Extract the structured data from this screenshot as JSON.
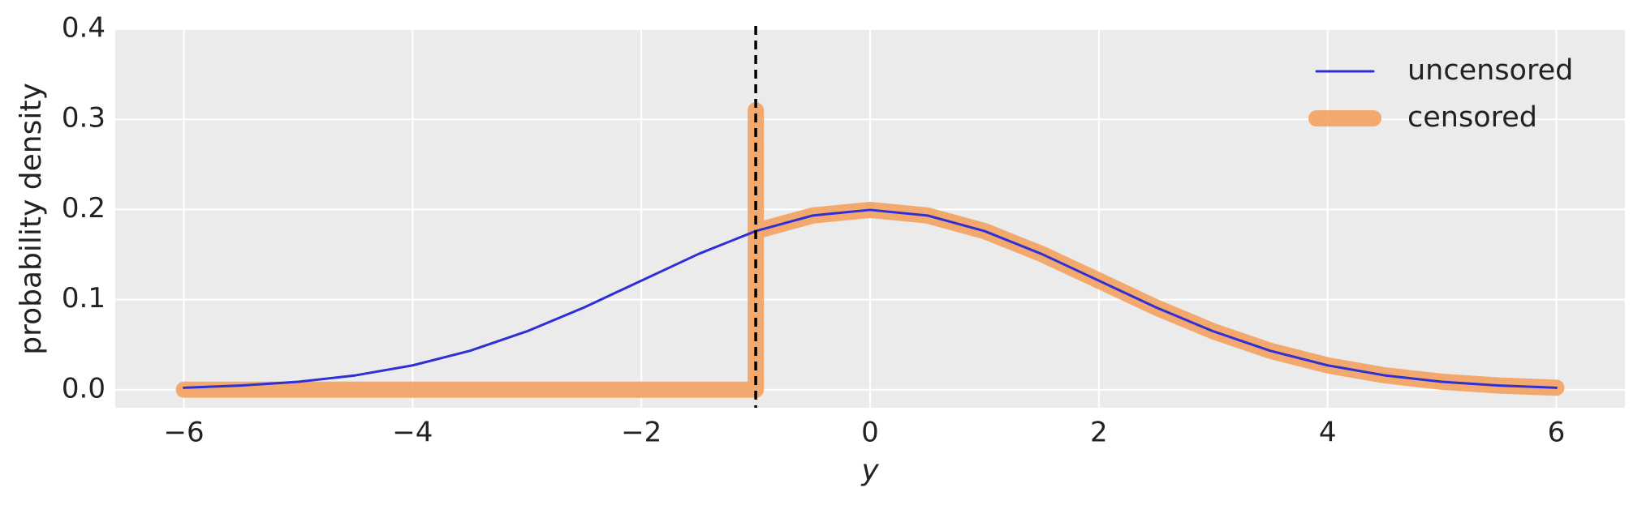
{
  "chart_data": {
    "type": "line",
    "xlabel": "y",
    "ylabel": "probability density",
    "xlim": [
      -6.6,
      6.6
    ],
    "ylim": [
      -0.02,
      0.4
    ],
    "xticks": [
      {
        "value": -6,
        "label": "−6"
      },
      {
        "value": -4,
        "label": "−4"
      },
      {
        "value": -2,
        "label": "−2"
      },
      0,
      2,
      4,
      6
    ],
    "yticks": [
      {
        "value": 0,
        "label": "0.0"
      },
      0.1,
      0.2,
      0.3,
      0.4
    ],
    "grid": true,
    "legend": "upper right",
    "threshold": -1,
    "series": [
      {
        "name": "uncensored",
        "color": "#2f2fd6",
        "width": 3,
        "x": [
          -6,
          -5.5,
          -5,
          -4.5,
          -4,
          -3.5,
          -3,
          -2.5,
          -2,
          -1.5,
          -1,
          -0.5,
          0,
          0.5,
          1,
          1.5,
          2,
          2.5,
          3,
          3.5,
          4,
          4.5,
          5,
          5.5,
          6
        ],
        "values": [
          0.0022,
          0.0046,
          0.0088,
          0.0159,
          0.027,
          0.0431,
          0.0648,
          0.0913,
          0.121,
          0.1506,
          0.176,
          0.1933,
          0.1995,
          0.1933,
          0.176,
          0.1506,
          0.121,
          0.0913,
          0.0648,
          0.0431,
          0.027,
          0.0159,
          0.0088,
          0.0046,
          0.0022
        ]
      },
      {
        "name": "censored",
        "color": "#f4a261",
        "width": 20,
        "x": [
          -6,
          -1,
          -1,
          -1,
          -0.5,
          0,
          0.5,
          1,
          1.5,
          2,
          2.5,
          3,
          3.5,
          4,
          4.5,
          5,
          5.5,
          6
        ],
        "values": [
          0,
          0,
          0.31,
          0.176,
          0.1933,
          0.1995,
          0.1933,
          0.176,
          0.1506,
          0.121,
          0.0913,
          0.0648,
          0.0431,
          0.027,
          0.0159,
          0.0088,
          0.0046,
          0.0022
        ]
      }
    ]
  }
}
